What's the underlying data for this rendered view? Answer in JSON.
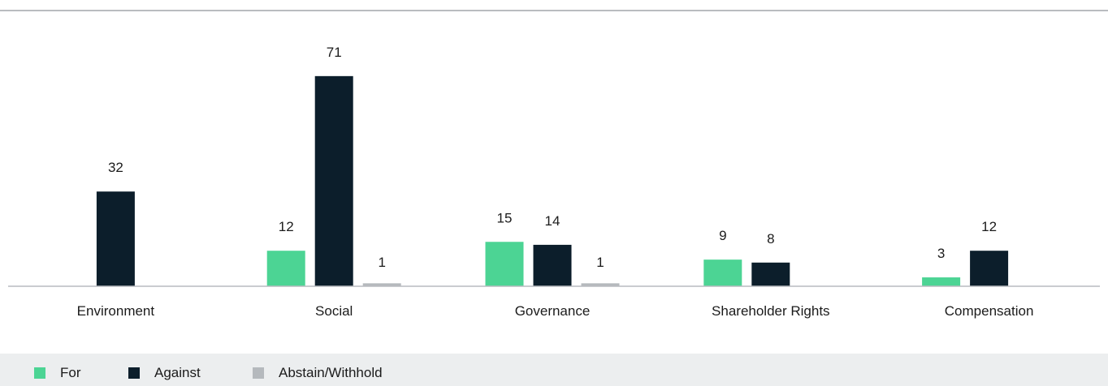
{
  "colors": {
    "for": "#4cd494",
    "against": "#0c1e2b",
    "abstain": "#b5b9bd",
    "axis": "#b9bcc0",
    "legend_bg": "#eceeef"
  },
  "legend": {
    "items": [
      {
        "label": "For",
        "color": "#4cd494"
      },
      {
        "label": "Against",
        "color": "#0c1e2b"
      },
      {
        "label": "Abstain/Withhold",
        "color": "#b5b9bd"
      }
    ]
  },
  "chart_data": {
    "type": "bar",
    "title": "",
    "xlabel": "",
    "ylabel": "",
    "ylim": [
      0,
      80
    ],
    "grid": false,
    "legend_position": "bottom-left",
    "categories": [
      "Environment",
      "Social",
      "Governance",
      "Shareholder Rights",
      "Compensation"
    ],
    "series": [
      {
        "name": "For",
        "values": [
          null,
          12,
          15,
          9,
          3
        ]
      },
      {
        "name": "Against",
        "values": [
          32,
          71,
          14,
          8,
          12
        ]
      },
      {
        "name": "Abstain/Withhold",
        "values": [
          null,
          1,
          1,
          null,
          null
        ]
      }
    ]
  }
}
